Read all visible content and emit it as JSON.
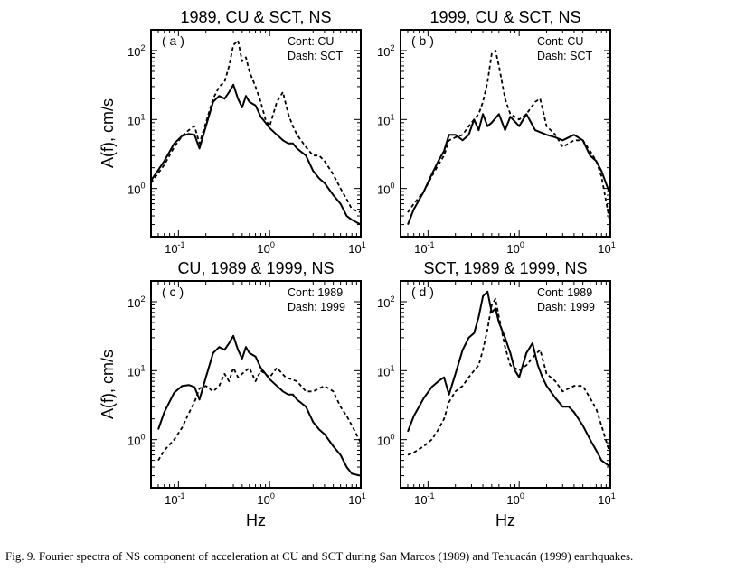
{
  "caption": "Fig. 9. Fourier spectra of NS component of acceleration at CU and SCT during San Marcos (1989) and Tehuacán (1999) earthquakes.",
  "colors": {
    "line": "#000000",
    "background": "#ffffff"
  },
  "chart_data": [
    {
      "type": "line",
      "panel_label": "( a )",
      "title": "1989, CU & SCT, NS",
      "xlabel": "Hz",
      "ylabel": "A(f), cm/s",
      "xscale": "log",
      "yscale": "log",
      "xlim": [
        0.05,
        10
      ],
      "ylim": [
        0.2,
        200
      ],
      "x_ticks": [
        "10",
        "10",
        "10"
      ],
      "x_tick_exps": [
        "-1",
        "0",
        "1"
      ],
      "y_ticks": [
        "10",
        "10",
        "10"
      ],
      "y_tick_exps": [
        "0",
        "1",
        "2"
      ],
      "legend": {
        "line1": "Cont: CU",
        "line2": "Dash: SCT"
      },
      "series": [
        {
          "name": "CU",
          "style": "solid",
          "x": [
            0.05,
            0.07,
            0.09,
            0.11,
            0.13,
            0.15,
            0.17,
            0.2,
            0.24,
            0.28,
            0.32,
            0.36,
            0.4,
            0.45,
            0.5,
            0.55,
            0.6,
            0.7,
            0.8,
            0.9,
            1.0,
            1.2,
            1.4,
            1.6,
            1.8,
            2.0,
            2.5,
            3.0,
            3.5,
            4.0,
            5.0,
            6.0,
            7.0,
            8.0,
            10.0
          ],
          "y": [
            1.3,
            2.5,
            4.5,
            5.8,
            6.2,
            6.0,
            3.8,
            8,
            18,
            22,
            20,
            25,
            32,
            20,
            15,
            22,
            18,
            16,
            11,
            9,
            7.5,
            6,
            5,
            4.5,
            4.5,
            3.8,
            3.0,
            1.8,
            1.4,
            1.2,
            0.8,
            0.6,
            0.4,
            0.35,
            0.3
          ]
        },
        {
          "name": "SCT",
          "style": "dash",
          "x": [
            0.05,
            0.07,
            0.09,
            0.11,
            0.13,
            0.15,
            0.17,
            0.2,
            0.24,
            0.28,
            0.32,
            0.36,
            0.4,
            0.45,
            0.5,
            0.55,
            0.6,
            0.7,
            0.8,
            0.9,
            1.0,
            1.2,
            1.4,
            1.6,
            1.8,
            2.0,
            2.5,
            3.0,
            3.5,
            4.0,
            5.0,
            6.0,
            7.0,
            8.0,
            10.0
          ],
          "y": [
            1.2,
            2.2,
            4.0,
            5.8,
            7.0,
            8.0,
            4.5,
            9,
            20,
            30,
            35,
            60,
            120,
            140,
            70,
            80,
            50,
            30,
            18,
            10,
            8,
            18,
            25,
            12,
            8,
            6,
            4,
            3,
            3,
            2.5,
            1.6,
            1.0,
            0.7,
            0.5,
            0.45
          ]
        }
      ]
    },
    {
      "type": "line",
      "panel_label": "( b )",
      "title": "1999, CU & SCT, NS",
      "xlabel": "Hz",
      "ylabel": "A(f), cm/s",
      "xscale": "log",
      "yscale": "log",
      "xlim": [
        0.05,
        10
      ],
      "ylim": [
        0.2,
        200
      ],
      "x_ticks": [
        "10",
        "10",
        "10"
      ],
      "x_tick_exps": [
        "-1",
        "0",
        "1"
      ],
      "y_ticks": [
        "10",
        "10",
        "10"
      ],
      "y_tick_exps": [
        "0",
        "1",
        "2"
      ],
      "legend": {
        "line1": "Cont: CU",
        "line2": "Dash: SCT"
      },
      "series": [
        {
          "name": "CU",
          "style": "solid",
          "x": [
            0.06,
            0.07,
            0.09,
            0.11,
            0.13,
            0.15,
            0.17,
            0.2,
            0.24,
            0.28,
            0.32,
            0.36,
            0.4,
            0.45,
            0.5,
            0.6,
            0.7,
            0.8,
            1.0,
            1.2,
            1.5,
            2.0,
            2.5,
            3.0,
            4.0,
            5.0,
            6.0,
            7.0,
            8.0,
            10.0
          ],
          "y": [
            0.3,
            0.5,
            0.9,
            1.6,
            2.5,
            3.5,
            6,
            6,
            5,
            6,
            10,
            7,
            12,
            8,
            9,
            12,
            7,
            11,
            8,
            12,
            7,
            6,
            5.5,
            5,
            6,
            5,
            3,
            2.5,
            1.8,
            0.8
          ]
        },
        {
          "name": "SCT",
          "style": "dash",
          "x": [
            0.06,
            0.07,
            0.09,
            0.11,
            0.13,
            0.15,
            0.17,
            0.2,
            0.24,
            0.28,
            0.32,
            0.36,
            0.4,
            0.45,
            0.5,
            0.55,
            0.6,
            0.7,
            0.8,
            1.0,
            1.2,
            1.5,
            1.7,
            2.0,
            2.5,
            3.0,
            4.0,
            5.0,
            6.0,
            7.0,
            8.0,
            10.0
          ],
          "y": [
            0.45,
            0.6,
            0.9,
            1.5,
            2.2,
            3,
            5,
            5.5,
            6,
            8,
            10,
            12,
            18,
            35,
            90,
            100,
            60,
            20,
            12,
            10,
            12,
            18,
            20,
            8,
            6,
            4,
            5,
            5,
            3.5,
            2.5,
            1.5,
            0.3
          ]
        }
      ]
    },
    {
      "type": "line",
      "panel_label": "( c )",
      "title": "CU, 1989 & 1999, NS",
      "xlabel": "Hz",
      "ylabel": "A(f), cm/s",
      "xscale": "log",
      "yscale": "log",
      "xlim": [
        0.05,
        10
      ],
      "ylim": [
        0.2,
        200
      ],
      "x_ticks": [
        "10",
        "10",
        "10"
      ],
      "x_tick_exps": [
        "-1",
        "0",
        "1"
      ],
      "y_ticks": [
        "10",
        "10",
        "10"
      ],
      "y_tick_exps": [
        "0",
        "1",
        "2"
      ],
      "legend": {
        "line1": "Cont: 1989",
        "line2": "Dash: 1999"
      },
      "series": [
        {
          "name": "1989",
          "style": "solid",
          "x": [
            0.06,
            0.07,
            0.09,
            0.11,
            0.13,
            0.15,
            0.17,
            0.2,
            0.24,
            0.28,
            0.32,
            0.36,
            0.4,
            0.45,
            0.5,
            0.55,
            0.6,
            0.7,
            0.8,
            0.9,
            1.0,
            1.2,
            1.4,
            1.6,
            1.8,
            2.0,
            2.5,
            3.0,
            3.5,
            4.0,
            5.0,
            6.0,
            7.0,
            8.0,
            10.0
          ],
          "y": [
            1.4,
            2.5,
            4.8,
            6.0,
            6.2,
            5.8,
            3.8,
            8,
            18,
            22,
            20,
            25,
            32,
            20,
            15,
            22,
            18,
            16,
            11,
            9,
            7.5,
            6,
            5,
            4.5,
            4.5,
            3.8,
            3.0,
            1.8,
            1.4,
            1.2,
            0.8,
            0.6,
            0.4,
            0.32,
            0.3
          ]
        },
        {
          "name": "1999",
          "style": "dash",
          "x": [
            0.06,
            0.07,
            0.09,
            0.11,
            0.13,
            0.15,
            0.17,
            0.2,
            0.24,
            0.28,
            0.32,
            0.36,
            0.4,
            0.45,
            0.5,
            0.6,
            0.7,
            0.8,
            1.0,
            1.2,
            1.5,
            2.0,
            2.5,
            3.0,
            4.0,
            5.0,
            6.0,
            7.0,
            8.0,
            10.0
          ],
          "y": [
            0.5,
            0.7,
            1.0,
            1.5,
            2.4,
            3.5,
            5.5,
            6,
            5,
            6,
            9,
            7,
            11,
            8,
            9,
            11,
            7,
            10,
            8,
            11,
            8,
            7,
            5,
            5,
            6,
            5,
            3,
            2.2,
            1.6,
            0.9
          ]
        }
      ]
    },
    {
      "type": "line",
      "panel_label": "( d )",
      "title": "SCT, 1989 & 1999, NS",
      "xlabel": "Hz",
      "ylabel": "A(f), cm/s",
      "xscale": "log",
      "yscale": "log",
      "xlim": [
        0.05,
        10
      ],
      "ylim": [
        0.2,
        200
      ],
      "x_ticks": [
        "10",
        "10",
        "10"
      ],
      "x_tick_exps": [
        "-1",
        "0",
        "1"
      ],
      "y_ticks": [
        "10",
        "10",
        "10"
      ],
      "y_tick_exps": [
        "0",
        "1",
        "2"
      ],
      "legend": {
        "line1": "Cont: 1989",
        "line2": "Dash: 1999"
      },
      "series": [
        {
          "name": "1989",
          "style": "solid",
          "x": [
            0.06,
            0.07,
            0.09,
            0.11,
            0.13,
            0.15,
            0.17,
            0.2,
            0.24,
            0.28,
            0.32,
            0.36,
            0.4,
            0.45,
            0.5,
            0.55,
            0.6,
            0.7,
            0.8,
            0.9,
            1.0,
            1.2,
            1.4,
            1.6,
            1.8,
            2.0,
            2.5,
            3.0,
            3.5,
            4.0,
            5.0,
            6.0,
            7.0,
            8.0,
            10.0
          ],
          "y": [
            1.3,
            2.2,
            4.0,
            5.8,
            7.0,
            8.0,
            4.5,
            9,
            20,
            30,
            35,
            60,
            120,
            140,
            70,
            80,
            50,
            30,
            18,
            10,
            8,
            18,
            25,
            12,
            8,
            6,
            4,
            3,
            3,
            2.5,
            1.6,
            1.0,
            0.7,
            0.5,
            0.4
          ]
        },
        {
          "name": "1999",
          "style": "dash",
          "x": [
            0.06,
            0.07,
            0.09,
            0.11,
            0.13,
            0.15,
            0.17,
            0.2,
            0.24,
            0.28,
            0.32,
            0.36,
            0.4,
            0.45,
            0.5,
            0.55,
            0.6,
            0.7,
            0.8,
            1.0,
            1.2,
            1.5,
            1.7,
            2.0,
            2.5,
            3.0,
            4.0,
            5.0,
            6.0,
            7.0,
            8.0,
            10.0
          ],
          "y": [
            0.6,
            0.65,
            0.8,
            1.0,
            1.4,
            2,
            3.5,
            5,
            6,
            8,
            10,
            12,
            20,
            40,
            90,
            110,
            60,
            22,
            12,
            10,
            12,
            17,
            20,
            9,
            7,
            5,
            6,
            6,
            4,
            2.8,
            1.6,
            0.6
          ]
        }
      ]
    }
  ]
}
